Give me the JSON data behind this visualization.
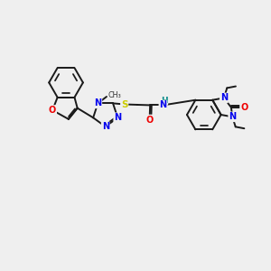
{
  "background_color": "#efefef",
  "bond_color": "#1a1a1a",
  "atom_colors": {
    "N": "#0000ee",
    "O": "#ee0000",
    "S": "#cccc00",
    "H": "#008888",
    "C": "#1a1a1a"
  },
  "figsize": [
    3.0,
    3.0
  ],
  "dpi": 100,
  "xlim": [
    -1.5,
    11.5
  ],
  "ylim": [
    -1.0,
    8.5
  ]
}
